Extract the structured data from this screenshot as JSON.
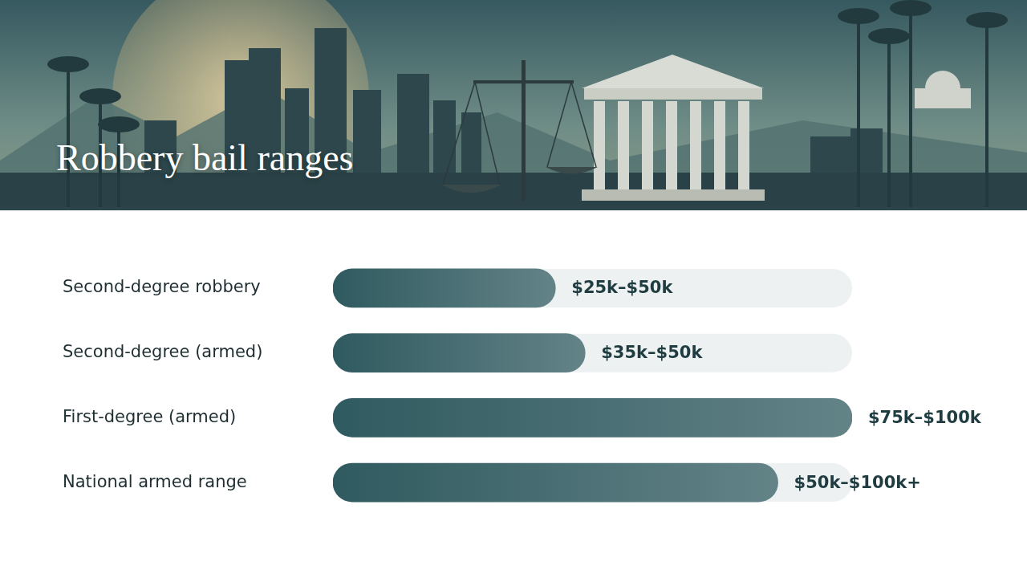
{
  "chart_data": {
    "type": "bar",
    "orientation": "horizontal",
    "title": "Robbery bail ranges",
    "categories": [
      "Second-degree robbery",
      "Second-degree (armed)",
      "First-degree (armed)",
      "National armed range"
    ],
    "values": [
      37.5,
      42.5,
      87.5,
      75
    ],
    "value_labels": [
      "$25k–$50k",
      "$35k–$50k",
      "$75k–$100k",
      "$50k–$100k+"
    ],
    "xlim": [
      0,
      87.5
    ],
    "grid": false,
    "data_labels": true,
    "tick_labels": "y",
    "color": "#2f5a5f"
  }
}
